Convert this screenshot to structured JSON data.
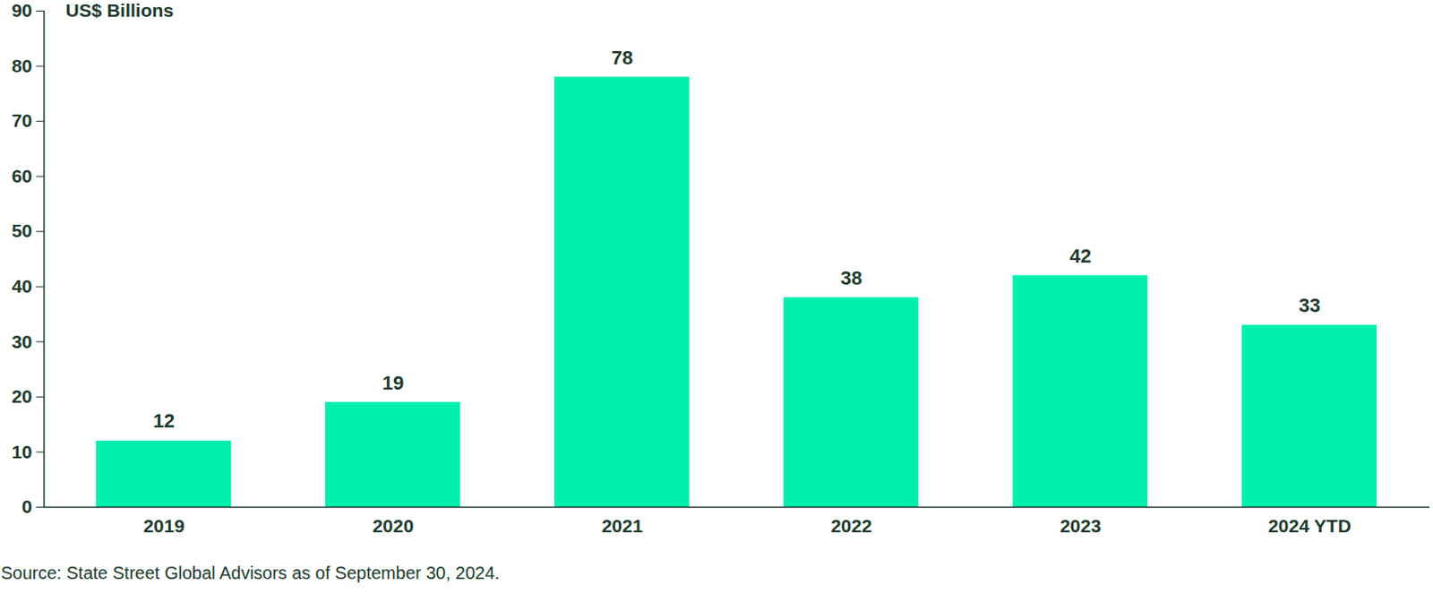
{
  "chart_data": {
    "type": "bar",
    "ylabel": "US$ Billions",
    "caption": "Source: State Street Global Advisors as of September 30, 2024.",
    "categories": [
      "2019",
      "2020",
      "2021",
      "2022",
      "2023",
      "2024 YTD"
    ],
    "values": [
      12,
      19,
      78,
      38,
      42,
      33
    ],
    "color": "#00efaf",
    "ylim": [
      0,
      90
    ],
    "yticks": [
      0,
      10,
      20,
      30,
      40,
      50,
      60,
      70,
      80,
      90
    ],
    "grid": false,
    "data_labels": true
  }
}
